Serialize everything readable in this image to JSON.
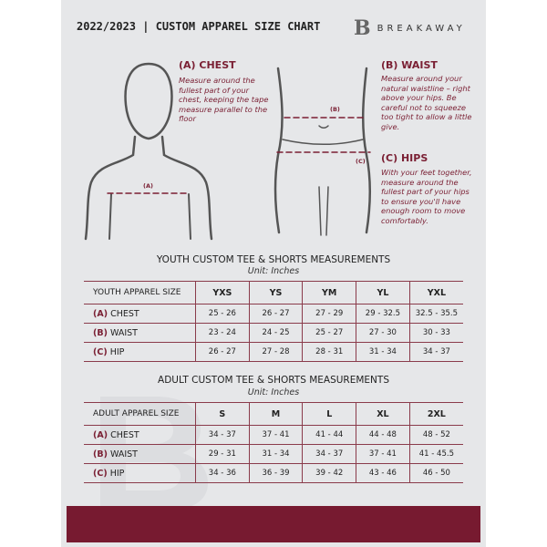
{
  "header": {
    "title": "2022/2023 | CUSTOM APPAREL SIZE CHART",
    "logo_text": "BREAKAWAY",
    "logo_letter": "B"
  },
  "chest": {
    "heading": "(A) CHEST",
    "description": "Measure around the fullest part of your chest, keeping the tape measure parallel to the floor",
    "marker": "(A)"
  },
  "waist": {
    "heading": "(B) WAIST",
    "description": "Measure around your natural waistline – right above your hips. Be careful not to squeeze too tight to allow a little give.",
    "marker": "(B)"
  },
  "hips": {
    "heading": "(C) HIPS",
    "description": "With your feet together, measure around the fullest part of your hips to ensure you'll have enough room to move comfortably.",
    "marker": "(C)"
  },
  "colors": {
    "accent": "#771a30",
    "panel": "#e6e7e9"
  },
  "youth": {
    "title": "YOUTH CUSTOM TEE & SHORTS MEASUREMENTS",
    "unit": "Unit: Inches",
    "header_label": "YOUTH APPAREL SIZE",
    "sizes": [
      "YXS",
      "YS",
      "YM",
      "YL",
      "YXL"
    ],
    "rows": [
      {
        "letter": "(A)",
        "name": "CHEST",
        "values": [
          "25 - 26",
          "26 - 27",
          "27 - 29",
          "29 - 32.5",
          "32.5 - 35.5"
        ]
      },
      {
        "letter": "(B)",
        "name": "WAIST",
        "values": [
          "23 - 24",
          "24 - 25",
          "25 - 27",
          "27 - 30",
          "30 - 33"
        ]
      },
      {
        "letter": "(C)",
        "name": "HIP",
        "values": [
          "26 - 27",
          "27 - 28",
          "28 - 31",
          "31 - 34",
          "34 - 37"
        ]
      }
    ]
  },
  "adult": {
    "title": "ADULT CUSTOM TEE & SHORTS MEASUREMENTS",
    "unit": "Unit: Inches",
    "header_label": "ADULT APPAREL SIZE",
    "sizes": [
      "S",
      "M",
      "L",
      "XL",
      "2XL"
    ],
    "rows": [
      {
        "letter": "(A)",
        "name": "CHEST",
        "values": [
          "34 - 37",
          "37 - 41",
          "41 - 44",
          "44 - 48",
          "48 - 52"
        ]
      },
      {
        "letter": "(B)",
        "name": "WAIST",
        "values": [
          "29 - 31",
          "31 - 34",
          "34 - 37",
          "37 - 41",
          "41 - 45.5"
        ]
      },
      {
        "letter": "(C)",
        "name": "HIP",
        "values": [
          "34 - 36",
          "36 - 39",
          "39 - 42",
          "43 - 46",
          "46 - 50"
        ]
      }
    ]
  }
}
